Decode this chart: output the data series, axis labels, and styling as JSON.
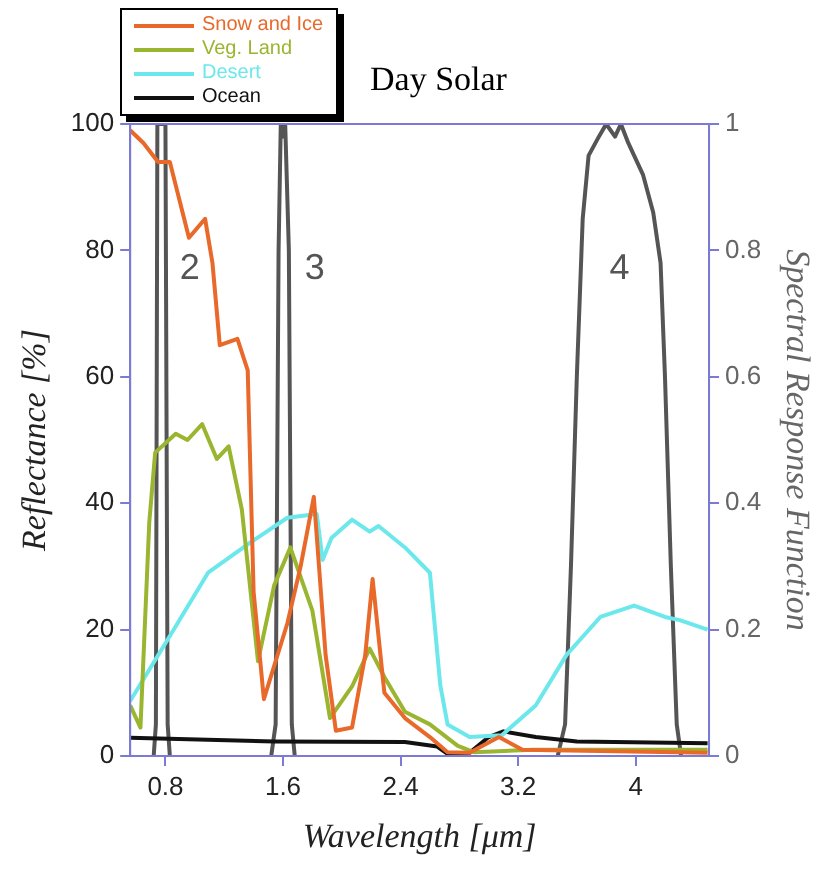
{
  "chart_data": {
    "type": "line",
    "title": "Day Solar",
    "xlabel": "Wavelength [μm]",
    "ylabel": "Reflectance [%]",
    "y2label": "Spectral Response Function",
    "xlim": [
      0.56,
      4.5
    ],
    "xticks": [
      0.8,
      1.6,
      2.4,
      3.2,
      4
    ],
    "ylim": [
      0,
      100
    ],
    "yticks": [
      0,
      20,
      40,
      60,
      80,
      100
    ],
    "y2lim": [
      0,
      1
    ],
    "y2ticks": [
      0,
      0.2,
      0.4,
      0.6,
      0.8,
      1
    ],
    "grid": false,
    "legend": "top left",
    "marker": "none",
    "line_style": "solid",
    "series": [
      {
        "name": "Snow and Ice",
        "color": "#e8692a",
        "x": [
          0.56,
          0.65,
          0.75,
          0.83,
          0.96,
          1.07,
          1.12,
          1.17,
          1.29,
          1.36,
          1.4,
          1.47,
          1.63,
          1.72,
          1.81,
          1.89,
          1.96,
          2.07,
          2.16,
          2.21,
          2.29,
          2.43,
          2.6,
          2.72,
          2.87,
          3.07,
          3.23,
          4.49
        ],
        "values": [
          99,
          97,
          94,
          94,
          82,
          85,
          78,
          65,
          66,
          61,
          26,
          9,
          21,
          30,
          41,
          16,
          4,
          4.5,
          16,
          28,
          10,
          6,
          3,
          0.6,
          0.5,
          3,
          1,
          0.5
        ]
      },
      {
        "name": "Veg. Land",
        "color": "#9ab530",
        "x": [
          0.56,
          0.63,
          0.69,
          0.73,
          0.87,
          0.95,
          1.05,
          1.15,
          1.23,
          1.32,
          1.43,
          1.54,
          1.65,
          1.74,
          1.8,
          1.92,
          2.07,
          2.19,
          2.29,
          2.43,
          2.6,
          2.79,
          2.9,
          3.3,
          4.49
        ],
        "values": [
          8,
          4.5,
          37,
          48,
          51,
          50,
          52.5,
          47,
          49,
          39,
          15,
          27,
          33,
          27,
          23,
          6,
          11,
          17,
          12.5,
          7,
          5,
          1.6,
          0.6,
          1,
          1
        ]
      },
      {
        "name": "Desert",
        "color": "#6ce8ec",
        "x": [
          0.56,
          0.83,
          1.09,
          1.36,
          1.63,
          1.83,
          1.87,
          1.93,
          2.07,
          2.19,
          2.25,
          2.43,
          2.6,
          2.67,
          2.72,
          2.87,
          3.09,
          3.32,
          3.53,
          3.76,
          3.99,
          4.2,
          4.3,
          4.49
        ],
        "values": [
          8.7,
          19,
          29,
          33.5,
          37.7,
          38.3,
          31,
          34.5,
          37.4,
          35.5,
          36.4,
          33,
          29,
          11.3,
          5,
          3,
          3.3,
          8,
          16,
          22,
          23.8,
          22,
          21.5,
          20
        ]
      },
      {
        "name": "Ocean",
        "color": "#111111",
        "x": [
          0.56,
          1.54,
          2.43,
          2.65,
          2.74,
          2.87,
          3.0,
          3.1,
          3.32,
          3.6,
          4.49
        ],
        "values": [
          2.9,
          2.3,
          2.2,
          1.5,
          0,
          0.5,
          3,
          3.9,
          3,
          2.3,
          2
        ]
      },
      {
        "color": "#555555",
        "axis": "y2",
        "x": [
          0.72,
          0.735,
          0.745,
          0.8,
          0.815,
          0.83
        ],
        "values": [
          0,
          0.05,
          1,
          1,
          0.05,
          0
        ]
      },
      {
        "color": "#555555",
        "axis": "y2",
        "x": [
          1.52,
          1.55,
          1.57,
          1.585,
          1.6,
          1.615,
          1.64,
          1.66,
          1.68
        ],
        "values": [
          0,
          0.05,
          0.8,
          1,
          0.98,
          1,
          0.8,
          0.05,
          0
        ]
      },
      {
        "color": "#555555",
        "axis": "y2",
        "x": [
          3.47,
          3.52,
          3.56,
          3.6,
          3.64,
          3.68,
          3.75,
          3.8,
          3.86,
          3.9,
          3.95,
          4.05,
          4.12,
          4.17,
          4.2,
          4.24,
          4.28,
          4.31
        ],
        "values": [
          0,
          0.05,
          0.3,
          0.6,
          0.85,
          0.95,
          0.98,
          1,
          0.98,
          1,
          0.97,
          0.92,
          0.86,
          0.78,
          0.6,
          0.3,
          0.05,
          0
        ]
      }
    ],
    "annotations": [
      "2",
      "3",
      "4"
    ]
  }
}
